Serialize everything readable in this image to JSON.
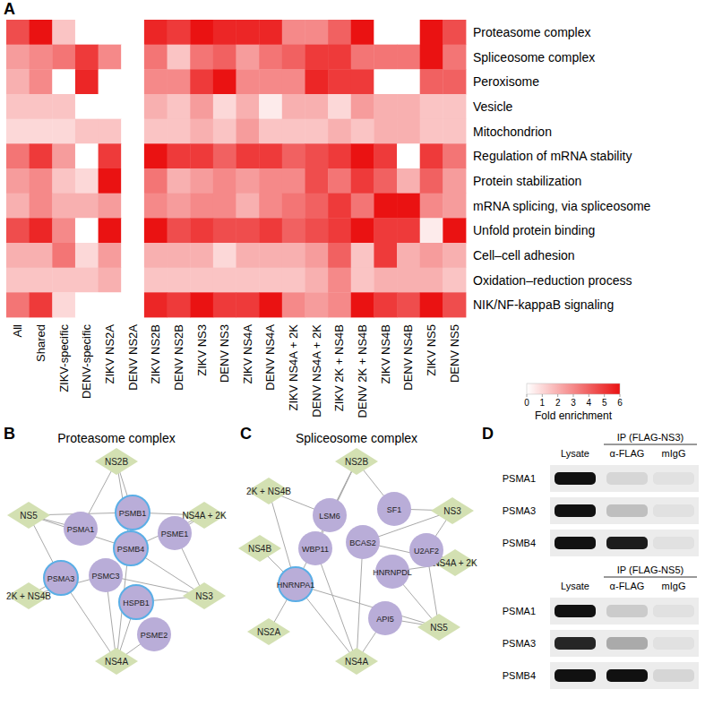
{
  "panel_labels": [
    "A",
    "B",
    "C",
    "D"
  ],
  "chart_data": {
    "type": "heatmap",
    "x": [
      "All",
      "Shared",
      "ZIKV-specific",
      "DENV-specific",
      "ZIKV NS2A",
      "DENV NS2A",
      "ZIKV NS2B",
      "DENV NS2B",
      "ZIKV NS3",
      "DENV NS3",
      "ZIKV NS4A",
      "DENV NS4A",
      "ZIKV NS4A + 2K",
      "DENV NS4A + 2K",
      "ZIKV 2K + NS4B",
      "DENV 2K + NS4B",
      "ZIKV NS4B",
      "DENV NS4B",
      "ZIKV NS5",
      "DENV NS5"
    ],
    "y": [
      "Proteasome complex",
      "Spliceosome complex",
      "Peroxisome",
      "Vesicle",
      "Mitochondrion",
      "Regulation of mRNA stability",
      "Protein stabilization",
      "mRNA splicing, via spliceosome",
      "Unfold protein binding",
      "Cell–cell adhesion",
      "Oxidation–reduction process",
      "NIK/NF-kappaB signaling"
    ],
    "values": [
      [
        4.5,
        6,
        1.5,
        0,
        0,
        0,
        5.5,
        5,
        6,
        5.5,
        5.5,
        5.5,
        3,
        3,
        4,
        6,
        0,
        0,
        6,
        4.5
      ],
      [
        2.5,
        3,
        3.5,
        5,
        3,
        0,
        3.5,
        1.5,
        3.5,
        4,
        2.5,
        3.5,
        4,
        5,
        5,
        3.5,
        3.5,
        3.5,
        6,
        3.5
      ],
      [
        2,
        3,
        0,
        5.5,
        0,
        0,
        3,
        3,
        5,
        6,
        3,
        3,
        3,
        5.5,
        5,
        5,
        0,
        0,
        4,
        4
      ],
      [
        1.5,
        1.5,
        1.5,
        0,
        0,
        0,
        2,
        1.5,
        2.5,
        1,
        2,
        0.5,
        2,
        2,
        1,
        2.5,
        2,
        2,
        1.5,
        1.5
      ],
      [
        1,
        1,
        1,
        1.5,
        1.5,
        0,
        1.5,
        1.5,
        2,
        1.5,
        2.5,
        1.5,
        1.5,
        1.5,
        2,
        1.5,
        2,
        2,
        1.5,
        1.5
      ],
      [
        3.5,
        5,
        2.5,
        0,
        5,
        0,
        6,
        5,
        5,
        4,
        5,
        5,
        4,
        4.5,
        5,
        6,
        5,
        0,
        5,
        3.5
      ],
      [
        2.5,
        3,
        1.5,
        1,
        6,
        0,
        3.5,
        2,
        2.5,
        3,
        2.5,
        3,
        3,
        4.5,
        3.5,
        5,
        4,
        2,
        4,
        2.5
      ],
      [
        2,
        3,
        2,
        2,
        2.5,
        0,
        3,
        2.5,
        3,
        3,
        2,
        3,
        3.5,
        4,
        5,
        3.5,
        6,
        6,
        3,
        2.5
      ],
      [
        4.5,
        5.5,
        3,
        0,
        6,
        0,
        6,
        4.5,
        5,
        4.5,
        4.5,
        5,
        4,
        4.5,
        5,
        6,
        5,
        5,
        0.5,
        6
      ],
      [
        2,
        2,
        3.5,
        1,
        2.5,
        0,
        2,
        2,
        2,
        1,
        2,
        2,
        2,
        2.5,
        4,
        1.5,
        5,
        2,
        2.5,
        2
      ],
      [
        1.5,
        1.5,
        1.5,
        1.5,
        2,
        0,
        1.5,
        1.5,
        1.5,
        1.5,
        1.5,
        1.5,
        1.5,
        2,
        3,
        1.5,
        2,
        2,
        2,
        1.5
      ],
      [
        3.5,
        5,
        1,
        0,
        0,
        0,
        5.5,
        5,
        6,
        5,
        5,
        6,
        3,
        2.5,
        3,
        6,
        5,
        4.5,
        6,
        4.5
      ]
    ],
    "colorbar": {
      "range": [
        0,
        6
      ],
      "ticks": [
        0,
        1,
        2,
        3,
        4,
        5,
        6
      ],
      "label": "Fold enrichment"
    }
  },
  "network_b": {
    "title": "Proteasome complex",
    "nodes": [
      {
        "label": "NS2B",
        "kind": "viral",
        "highlight": false
      },
      {
        "label": "NS4A + 2K",
        "kind": "viral",
        "highlight": false
      },
      {
        "label": "NS3",
        "kind": "viral",
        "highlight": false
      },
      {
        "label": "NS4A",
        "kind": "viral",
        "highlight": false
      },
      {
        "label": "2K + NS4B",
        "kind": "viral",
        "highlight": false
      },
      {
        "label": "NS5",
        "kind": "viral",
        "highlight": false
      },
      {
        "label": "PSMA1",
        "kind": "host",
        "highlight": false
      },
      {
        "label": "PSMB1",
        "kind": "host",
        "highlight": true
      },
      {
        "label": "PSME1",
        "kind": "host",
        "highlight": false
      },
      {
        "label": "PSMB4",
        "kind": "host",
        "highlight": true
      },
      {
        "label": "PSMC3",
        "kind": "host",
        "highlight": false
      },
      {
        "label": "PSMA3",
        "kind": "host",
        "highlight": true
      },
      {
        "label": "HSPB1",
        "kind": "host",
        "highlight": true
      },
      {
        "label": "PSME2",
        "kind": "host",
        "highlight": false
      }
    ],
    "edges": [
      [
        0,
        7
      ],
      [
        0,
        9
      ],
      [
        0,
        6
      ],
      [
        1,
        8
      ],
      [
        1,
        9
      ],
      [
        1,
        7
      ],
      [
        2,
        9
      ],
      [
        2,
        12
      ],
      [
        2,
        10
      ],
      [
        2,
        8
      ],
      [
        3,
        13
      ],
      [
        3,
        11
      ],
      [
        3,
        10
      ],
      [
        3,
        12
      ],
      [
        3,
        7
      ],
      [
        4,
        11
      ],
      [
        4,
        10
      ],
      [
        5,
        6
      ],
      [
        5,
        9
      ],
      [
        5,
        11
      ],
      [
        5,
        7
      ]
    ]
  },
  "network_c": {
    "title": "Spliceosome complex",
    "nodes": [
      {
        "label": "NS2B",
        "kind": "viral",
        "highlight": false
      },
      {
        "label": "NS3",
        "kind": "viral",
        "highlight": false
      },
      {
        "label": "NS4A + 2K",
        "kind": "viral",
        "highlight": false
      },
      {
        "label": "NS5",
        "kind": "viral",
        "highlight": false
      },
      {
        "label": "NS4A",
        "kind": "viral",
        "highlight": false
      },
      {
        "label": "NS2A",
        "kind": "viral",
        "highlight": false
      },
      {
        "label": "NS4B",
        "kind": "viral",
        "highlight": false
      },
      {
        "label": "2K + NS4B",
        "kind": "viral",
        "highlight": false
      },
      {
        "label": "LSM6",
        "kind": "host",
        "highlight": false
      },
      {
        "label": "SF1",
        "kind": "host",
        "highlight": false
      },
      {
        "label": "WBP11",
        "kind": "host",
        "highlight": false
      },
      {
        "label": "BCAS2",
        "kind": "host",
        "highlight": false
      },
      {
        "label": "U2AF2",
        "kind": "host",
        "highlight": false
      },
      {
        "label": "HNRNPDL",
        "kind": "host",
        "highlight": false
      },
      {
        "label": "HNRNPA1",
        "kind": "host",
        "highlight": true
      },
      {
        "label": "API5",
        "kind": "host",
        "highlight": false
      }
    ],
    "edges": [
      [
        7,
        8
      ],
      [
        7,
        14
      ],
      [
        0,
        8
      ],
      [
        0,
        9
      ],
      [
        0,
        14
      ],
      [
        0,
        10
      ],
      [
        1,
        9
      ],
      [
        1,
        12
      ],
      [
        1,
        11
      ],
      [
        2,
        12
      ],
      [
        2,
        13
      ],
      [
        2,
        11
      ],
      [
        3,
        15
      ],
      [
        3,
        12
      ],
      [
        3,
        13
      ],
      [
        3,
        14
      ],
      [
        4,
        14
      ],
      [
        4,
        15
      ],
      [
        4,
        10
      ],
      [
        4,
        11
      ],
      [
        5,
        14
      ],
      [
        6,
        14
      ]
    ]
  },
  "blot_d": {
    "sections": [
      {
        "ip_label": "IP (FLAG-NS3)",
        "lanes": [
          "Lysate",
          "α-FLAG",
          "mIgG"
        ],
        "rows": [
          {
            "label": "PSMA1",
            "intensity": [
              1,
              0.1,
              0.05
            ]
          },
          {
            "label": "PSMA3",
            "intensity": [
              1,
              0.2,
              0.05
            ]
          },
          {
            "label": "PSMB4",
            "intensity": [
              1,
              0.95,
              0.05
            ]
          }
        ]
      },
      {
        "ip_label": "IP (FLAG-NS5)",
        "lanes": [
          "Lysate",
          "α-FLAG",
          "mIgG"
        ],
        "rows": [
          {
            "label": "PSMA1",
            "intensity": [
              1,
              0.15,
              0.05
            ]
          },
          {
            "label": "PSMA3",
            "intensity": [
              0.9,
              0.3,
              0.05
            ]
          },
          {
            "label": "PSMB4",
            "intensity": [
              1,
              1,
              0.1
            ]
          }
        ]
      }
    ]
  }
}
